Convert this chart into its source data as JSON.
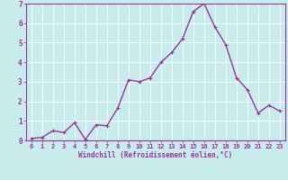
{
  "x": [
    0,
    1,
    2,
    3,
    4,
    5,
    6,
    7,
    8,
    9,
    10,
    11,
    12,
    13,
    14,
    15,
    16,
    17,
    18,
    19,
    20,
    21,
    22,
    23
  ],
  "y": [
    0.1,
    0.15,
    0.5,
    0.4,
    0.9,
    0.05,
    0.8,
    0.75,
    1.65,
    3.1,
    3.0,
    3.2,
    4.0,
    4.5,
    5.2,
    6.6,
    7.0,
    5.8,
    4.9,
    3.2,
    2.6,
    1.4,
    1.8,
    1.5
  ],
  "line_color": "#993399",
  "marker": "P",
  "marker_size": 2,
  "xlabel": "Windchill (Refroidissement éolien,°C)",
  "xlim": [
    -0.5,
    23.5
  ],
  "ylim": [
    0,
    7
  ],
  "yticks": [
    0,
    1,
    2,
    3,
    4,
    5,
    6,
    7
  ],
  "xticks": [
    0,
    1,
    2,
    3,
    4,
    5,
    6,
    7,
    8,
    9,
    10,
    11,
    12,
    13,
    14,
    15,
    16,
    17,
    18,
    19,
    20,
    21,
    22,
    23
  ],
  "background_color": "#c8ecec",
  "grid_color": "#ffffff",
  "tick_color": "#993399",
  "label_color": "#993399",
  "font_family": "monospace",
  "tick_fontsize": 5,
  "xlabel_fontsize": 5.5,
  "linewidth": 1.0
}
